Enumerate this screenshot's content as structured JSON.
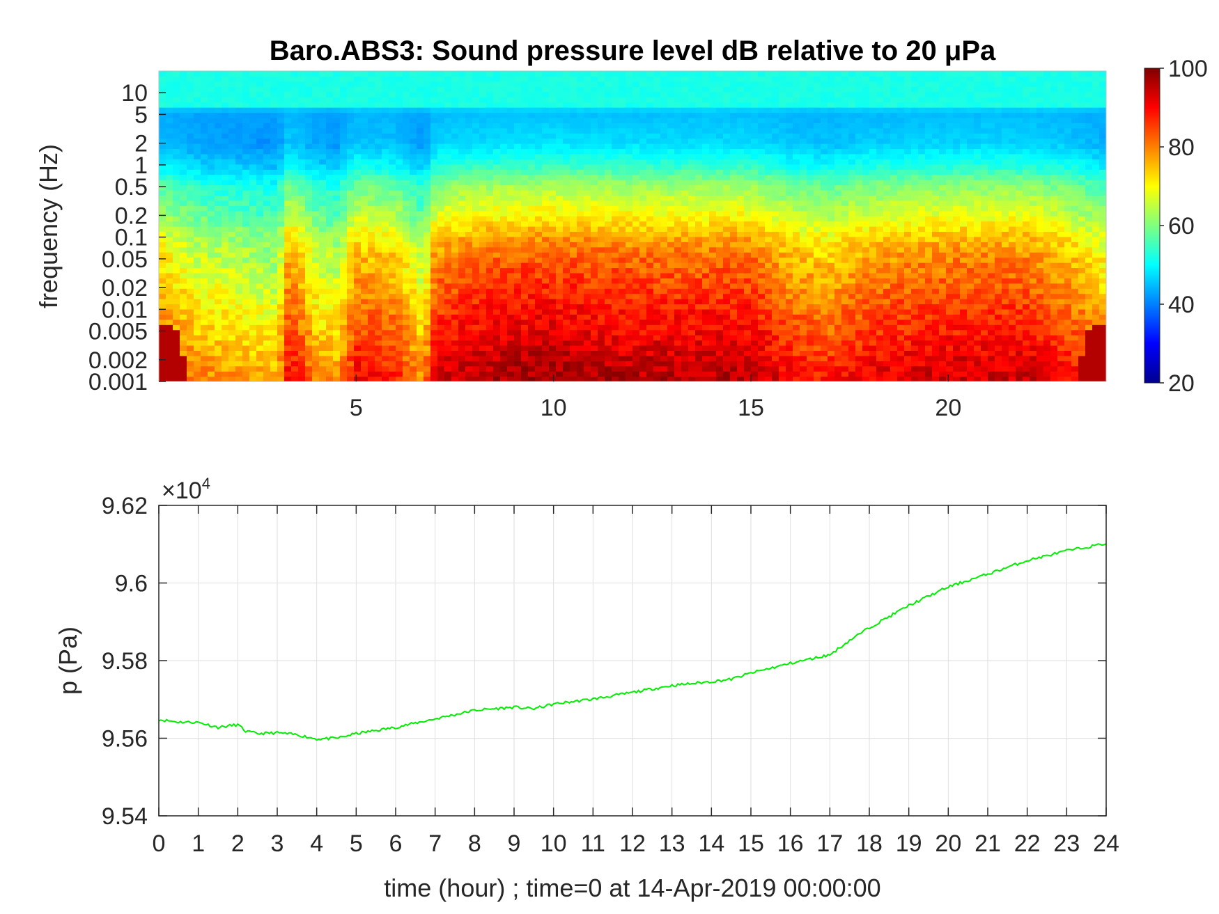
{
  "chart_data": [
    {
      "type": "heatmap",
      "title": "Baro.ABS3: Sound pressure level dB relative to 20 μPa",
      "ylabel": "frequency (Hz)",
      "xlabel": "",
      "xlim": [
        0,
        24
      ],
      "x_ticks": [
        "5",
        "10",
        "15",
        "20"
      ],
      "y_scale": "log",
      "ylim": [
        0.001,
        20
      ],
      "y_ticks": [
        "0.001",
        "0.002",
        "0.005",
        "0.01",
        "0.02",
        "0.05",
        "0.1",
        "0.2",
        "0.5",
        "1",
        "2",
        "5",
        "10"
      ],
      "colormap": "jet",
      "colorbar": {
        "range": [
          20,
          100
        ],
        "ticks": [
          "20",
          "40",
          "60",
          "80",
          "100"
        ]
      },
      "band_levels_db": {
        "frequency": [
          10,
          5,
          2,
          1,
          0.5,
          0.2,
          0.1,
          0.05,
          0.02,
          0.01,
          0.005,
          0.002,
          0.001
        ],
        "level": [
          52,
          44,
          45,
          50,
          58,
          64,
          70,
          74,
          77,
          80,
          82,
          86,
          88
        ]
      },
      "time_activity": {
        "hour": [
          0,
          1,
          2,
          3,
          3.3,
          4,
          4.5,
          5,
          6,
          6.7,
          7,
          8,
          10,
          12,
          14,
          15,
          16,
          17,
          18,
          20,
          22,
          23,
          24
        ],
        "boost_db": [
          -2,
          -8,
          -10,
          -12,
          4,
          -8,
          -10,
          2,
          0,
          -10,
          5,
          8,
          10,
          8,
          8,
          8,
          2,
          0,
          4,
          6,
          6,
          2,
          -4
        ]
      },
      "grid": false
    },
    {
      "type": "line",
      "ylabel": "p (Pa)",
      "xlabel": "time (hour) ; time=0 at 14-Apr-2019 00:00:00",
      "multiplier_label": "×10",
      "multiplier_exponent": "4",
      "xlim": [
        0,
        24
      ],
      "ylim": [
        9.54,
        9.62
      ],
      "x_ticks": [
        "0",
        "1",
        "2",
        "3",
        "4",
        "5",
        "6",
        "7",
        "8",
        "9",
        "10",
        "11",
        "12",
        "13",
        "14",
        "15",
        "16",
        "17",
        "18",
        "19",
        "20",
        "21",
        "22",
        "23",
        "24"
      ],
      "y_ticks": [
        "9.54",
        "9.56",
        "9.58",
        "9.6",
        "9.62"
      ],
      "grid": true,
      "line_color": "#00ee00",
      "series": [
        {
          "x": [
            0,
            0.5,
            1,
            1.5,
            2,
            2.2,
            2.5,
            3,
            3.5,
            4,
            4.5,
            5,
            6,
            7,
            8,
            9,
            9.5,
            10,
            11,
            12,
            13,
            14,
            14.5,
            15,
            16,
            17,
            17.5,
            18,
            19,
            20,
            21,
            22,
            23,
            23.5,
            24
          ],
          "y": [
            9.5648,
            9.5642,
            9.5641,
            9.5628,
            9.5635,
            9.5618,
            9.5612,
            9.5614,
            9.5609,
            9.5598,
            9.56,
            9.5612,
            9.5628,
            9.565,
            9.5672,
            9.568,
            9.5676,
            9.5688,
            9.5701,
            9.5718,
            9.5736,
            9.5746,
            9.5752,
            9.5768,
            9.5793,
            9.5815,
            9.5852,
            9.5885,
            9.5942,
            9.599,
            9.6023,
            9.6058,
            9.6083,
            9.6092,
            9.6102
          ]
        }
      ]
    }
  ]
}
